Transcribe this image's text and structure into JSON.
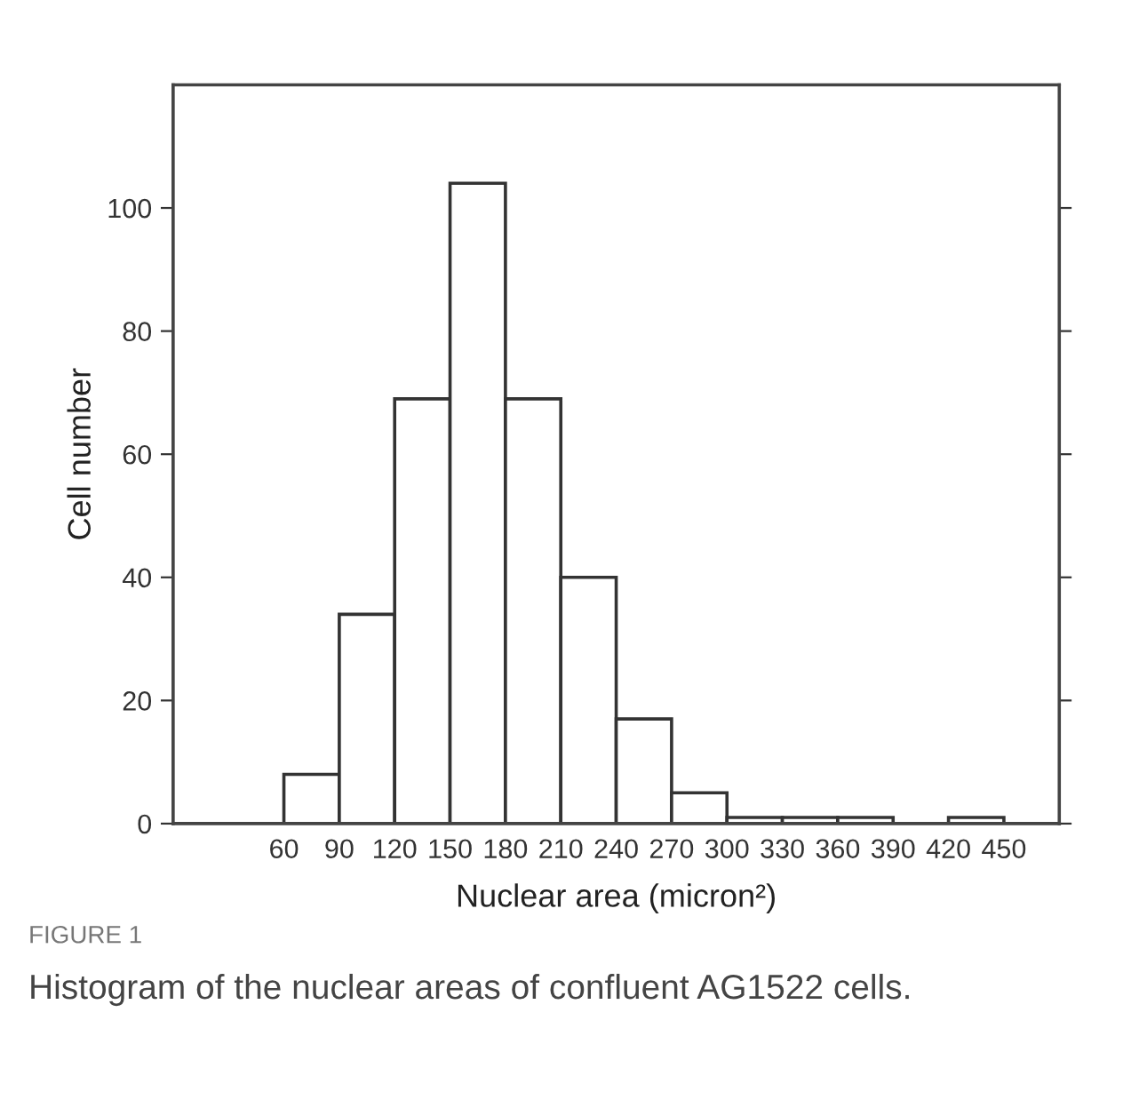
{
  "chart_data": {
    "type": "histogram",
    "xlabel": "Nuclear area (micron²)",
    "ylabel": "Cell number",
    "bins": [
      60,
      90,
      120,
      150,
      180,
      210,
      240,
      270,
      300,
      330,
      360,
      390,
      420,
      450
    ],
    "values": [
      8,
      34,
      69,
      104,
      69,
      40,
      17,
      5,
      1,
      1,
      1,
      0,
      1
    ],
    "color": "#ffffff",
    "xlim": [
      0,
      480
    ],
    "xticks": [
      60,
      90,
      120,
      150,
      180,
      210,
      240,
      270,
      300,
      330,
      360,
      390,
      420,
      450
    ],
    "ylim": [
      0,
      120
    ],
    "yticks": [
      0,
      20,
      40,
      60,
      80,
      100
    ],
    "grid": false,
    "legend": false,
    "annotations": [
      "FIGURE 1",
      "Histogram of the nuclear areas of confluent AG1522 cells."
    ]
  }
}
